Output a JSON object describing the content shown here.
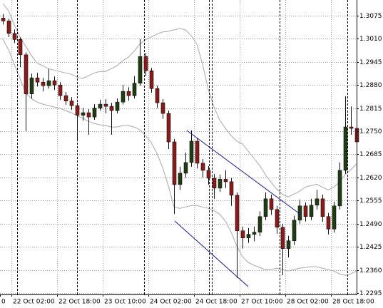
{
  "chart_data": {
    "type": "candlestick",
    "ylim": [
      1.2291,
      1.3119
    ],
    "yticks": [
      1.3075,
      {
        "value": 1.301,
        "label": "1.3010"
      },
      1.2945,
      {
        "value": 1.288,
        "label": "1.2880"
      },
      1.2815,
      {
        "value": 1.275,
        "label": "1.2750"
      },
      1.2685,
      {
        "value": 1.262,
        "label": "1.2620"
      },
      1.2555,
      {
        "value": 1.249,
        "label": "1.2490"
      },
      1.2425,
      {
        "value": 1.236,
        "label": "1.2360"
      },
      1.2295
    ],
    "grid": true,
    "up_color": "#1e3d14",
    "down_color": "#8b1a1a",
    "categories": [
      "0",
      null,
      "22 Oct 02:00",
      null,
      null,
      null,
      null,
      null,
      null,
      null,
      "22 Oct 18:00",
      null,
      null,
      null,
      null,
      null,
      null,
      null,
      "23 Oct 10:00",
      null,
      null,
      null,
      null,
      null,
      null,
      null,
      "24 Oct 02:00",
      null,
      null,
      null,
      null,
      null,
      null,
      null,
      "24 Oct 18:00",
      null,
      null,
      null,
      null,
      null,
      null,
      null,
      "27 Oct 10:00",
      null,
      null,
      null,
      null,
      null,
      null,
      null,
      "28 Oct 02:00",
      null,
      null,
      null,
      null,
      null,
      null,
      null,
      "28 Oct 18:00",
      null,
      null,
      null,
      null
    ],
    "ohlc": [
      [
        1.3068,
        1.308,
        1.305,
        1.306
      ],
      [
        1.306,
        1.3066,
        1.3015,
        1.3025
      ],
      [
        1.3025,
        1.3036,
        1.2998,
        1.3008
      ],
      [
        1.3008,
        1.3014,
        1.293,
        1.2965
      ],
      [
        1.2965,
        1.2972,
        1.275,
        1.2855
      ],
      [
        1.2855,
        1.2912,
        1.2842,
        1.29
      ],
      [
        1.29,
        1.2914,
        1.2876,
        1.2888
      ],
      [
        1.2888,
        1.29,
        1.2862,
        1.2878
      ],
      [
        1.2878,
        1.2925,
        1.287,
        1.2892
      ],
      [
        1.2892,
        1.2904,
        1.2866,
        1.288
      ],
      [
        1.288,
        1.2888,
        1.2838,
        1.285
      ],
      [
        1.285,
        1.286,
        1.2824,
        1.2835
      ],
      [
        1.2835,
        1.2846,
        1.281,
        1.2822
      ],
      [
        1.2822,
        1.283,
        1.2728,
        1.2795
      ],
      [
        1.2795,
        1.2815,
        1.278,
        1.2802
      ],
      [
        1.2802,
        1.2812,
        1.274,
        1.279
      ],
      [
        1.279,
        1.2826,
        1.2782,
        1.2815
      ],
      [
        1.2815,
        1.2838,
        1.2808,
        1.2826
      ],
      [
        1.2826,
        1.284,
        1.28,
        1.282
      ],
      [
        1.282,
        1.283,
        1.274,
        1.2808
      ],
      [
        1.2808,
        1.2842,
        1.28,
        1.2832
      ],
      [
        1.2832,
        1.288,
        1.2825,
        1.2862
      ],
      [
        1.2862,
        1.2874,
        1.2836,
        1.285
      ],
      [
        1.285,
        1.2905,
        1.2842,
        1.2885
      ],
      [
        1.2885,
        1.3009,
        1.2878,
        1.296
      ],
      [
        1.296,
        1.297,
        1.2905,
        1.292
      ],
      [
        1.292,
        1.2928,
        1.2858,
        1.287
      ],
      [
        1.287,
        1.2878,
        1.2815,
        1.283
      ],
      [
        1.283,
        1.284,
        1.2785,
        1.28
      ],
      [
        1.28,
        1.2808,
        1.27,
        1.272
      ],
      [
        1.272,
        1.2728,
        1.2517,
        1.26
      ],
      [
        1.26,
        1.265,
        1.2585,
        1.2632
      ],
      [
        1.2632,
        1.269,
        1.262,
        1.2662
      ],
      [
        1.2662,
        1.2752,
        1.265,
        1.2722
      ],
      [
        1.2722,
        1.273,
        1.2645,
        1.266
      ],
      [
        1.266,
        1.2672,
        1.262,
        1.264
      ],
      [
        1.264,
        1.2652,
        1.26,
        1.2618
      ],
      [
        1.2618,
        1.263,
        1.256,
        1.259
      ],
      [
        1.259,
        1.2628,
        1.258,
        1.2615
      ],
      [
        1.2615,
        1.264,
        1.259,
        1.2608
      ],
      [
        1.2608,
        1.2618,
        1.254,
        1.257
      ],
      [
        1.257,
        1.2578,
        1.2337,
        1.247
      ],
      [
        1.247,
        1.2482,
        1.242,
        1.245
      ],
      [
        1.245,
        1.2478,
        1.2436,
        1.246
      ],
      [
        1.246,
        1.2482,
        1.244,
        1.2466
      ],
      [
        1.2466,
        1.2525,
        1.2455,
        1.251
      ],
      [
        1.251,
        1.2578,
        1.25,
        1.256
      ],
      [
        1.256,
        1.2572,
        1.2515,
        1.253
      ],
      [
        1.253,
        1.254,
        1.2462,
        1.248
      ],
      [
        1.248,
        1.249,
        1.2345,
        1.242
      ],
      [
        1.242,
        1.2456,
        1.2395,
        1.2442
      ],
      [
        1.2442,
        1.2512,
        1.243,
        1.25
      ],
      [
        1.25,
        1.2558,
        1.249,
        1.254
      ],
      [
        1.254,
        1.255,
        1.2496,
        1.251
      ],
      [
        1.251,
        1.256,
        1.25,
        1.2542
      ],
      [
        1.2542,
        1.2585,
        1.253,
        1.256
      ],
      [
        1.256,
        1.2572,
        1.2495,
        1.251
      ],
      [
        1.251,
        1.252,
        1.246,
        1.2475
      ],
      [
        1.2475,
        1.2552,
        1.2465,
        1.254
      ],
      [
        1.254,
        1.2662,
        1.253,
        1.264
      ],
      [
        1.264,
        1.2848,
        1.263,
        1.2762
      ],
      [
        1.2762,
        1.282,
        1.274,
        1.2758
      ],
      [
        1.2758,
        1.279,
        1.27,
        1.272
      ]
    ],
    "bands": [
      {
        "color": "#a8a8a8",
        "values": [
          1.3109,
          1.3089,
          1.3049,
          1.3015,
          1.2989,
          1.2963,
          1.2942,
          1.2934,
          1.2926,
          1.2922,
          1.2918,
          1.2914,
          1.291,
          1.2902,
          1.2898,
          1.2906,
          1.2914,
          1.2918,
          1.2918,
          1.2926,
          1.2934,
          1.2948,
          1.2958,
          1.2975,
          1.2995,
          1.3007,
          1.3015,
          1.3023,
          1.3029,
          1.3031,
          1.3035,
          1.3039,
          1.3035,
          1.3019,
          1.2995,
          1.2938,
          1.2868,
          1.2818,
          1.2782,
          1.2758,
          1.2738,
          1.2722,
          1.2714,
          1.2694,
          1.2674,
          1.2654,
          1.2628,
          1.2607,
          1.2587,
          1.2573,
          1.2565,
          1.2573,
          1.2581,
          1.2593,
          1.2597,
          1.2601,
          1.2593,
          1.2585,
          1.2593,
          1.2607,
          1.2628,
          1.2642,
          1.2658
        ]
      },
      {
        "color": "#a8a8a8",
        "values": [
          1.3009,
          1.2979,
          1.2938,
          1.2898,
          1.2858,
          1.2842,
          1.2832,
          1.2826,
          1.2822,
          1.2818,
          1.2814,
          1.2808,
          1.2802,
          1.2794,
          1.2786,
          1.2778,
          1.2772,
          1.2768,
          1.2766,
          1.2762,
          1.2762,
          1.2766,
          1.2766,
          1.2762,
          1.2754,
          1.2738,
          1.2718,
          1.2688,
          1.2648,
          1.2597,
          1.2537,
          1.2533,
          1.2537,
          1.2541,
          1.2541,
          1.2537,
          1.2533,
          1.2527,
          1.2517,
          1.2497,
          1.2467,
          1.2427,
          1.2397,
          1.2381,
          1.2373,
          1.2367,
          1.2361,
          1.2361,
          1.2365,
          1.2361,
          1.2357,
          1.2361,
          1.2365,
          1.2367,
          1.2369,
          1.2369,
          1.2365,
          1.2361,
          1.2357,
          1.2349,
          1.2345,
          1.2349,
          1.2357
        ]
      }
    ]
  }
}
